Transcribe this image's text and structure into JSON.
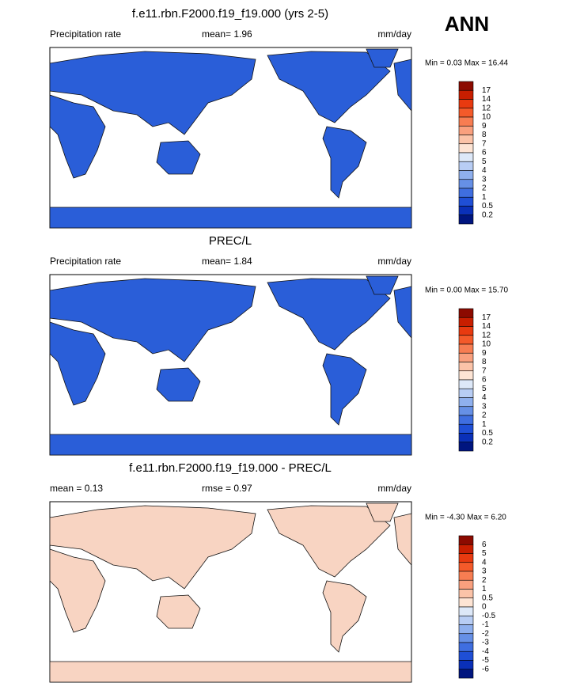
{
  "header": {
    "label": "ANN"
  },
  "panels": [
    {
      "title": "f.e11.rbn.F2000.f19_f19.000 (yrs 2-5)",
      "left": "Precipitation rate",
      "center": "mean=  1.96",
      "right": "mm/day",
      "minmax": "Min =  0.03 Max =  16.44",
      "map_color": "#2a5ed8",
      "colorbar": {
        "labels": [
          "17",
          "14",
          "12",
          "10",
          "9",
          "8",
          "7",
          "6",
          "5",
          "4",
          "3",
          "2",
          "1",
          "0.5",
          "0.2"
        ],
        "colors": [
          "#8c0a00",
          "#c81e00",
          "#e83a10",
          "#f45a2a",
          "#f77d52",
          "#f9a07e",
          "#fbc3a8",
          "#fde4d4",
          "#dde8f8",
          "#b8cdf4",
          "#8fb0ee",
          "#6690e6",
          "#3f6ee0",
          "#1f4fd6",
          "#0a30b8",
          "#00157f"
        ]
      }
    },
    {
      "title": "PREC/L",
      "left": "Precipitation rate",
      "center": "mean=  1.84",
      "right": "mm/day",
      "minmax": "Min =  0.00 Max =  15.70",
      "map_color": "#2a5ed8",
      "colorbar": {
        "labels": [
          "17",
          "14",
          "12",
          "10",
          "9",
          "8",
          "7",
          "6",
          "5",
          "4",
          "3",
          "2",
          "1",
          "0.5",
          "0.2"
        ],
        "colors": [
          "#8c0a00",
          "#c81e00",
          "#e83a10",
          "#f45a2a",
          "#f77d52",
          "#f9a07e",
          "#fbc3a8",
          "#fde4d4",
          "#dde8f8",
          "#b8cdf4",
          "#8fb0ee",
          "#6690e6",
          "#3f6ee0",
          "#1f4fd6",
          "#0a30b8",
          "#00157f"
        ]
      }
    },
    {
      "title": "f.e11.rbn.F2000.f19_f19.000 - PREC/L",
      "left": "mean =  0.13",
      "center": "rmse =  0.97",
      "right": "mm/day",
      "minmax": "Min =  -4.30 Max =  6.20",
      "map_color": "#f8d4c2",
      "colorbar": {
        "labels": [
          "6",
          "5",
          "4",
          "3",
          "2",
          "1",
          "0.5",
          "0",
          "-0.5",
          "-1",
          "-2",
          "-3",
          "-4",
          "-5",
          "-6"
        ],
        "colors": [
          "#8c0a00",
          "#c81e00",
          "#e83a10",
          "#f45a2a",
          "#f77d52",
          "#f9a07e",
          "#fbc3a8",
          "#fde4d4",
          "#dde8f8",
          "#b8cdf4",
          "#8fb0ee",
          "#6690e6",
          "#3f6ee0",
          "#1f4fd6",
          "#0a30b8",
          "#00157f"
        ]
      }
    }
  ]
}
